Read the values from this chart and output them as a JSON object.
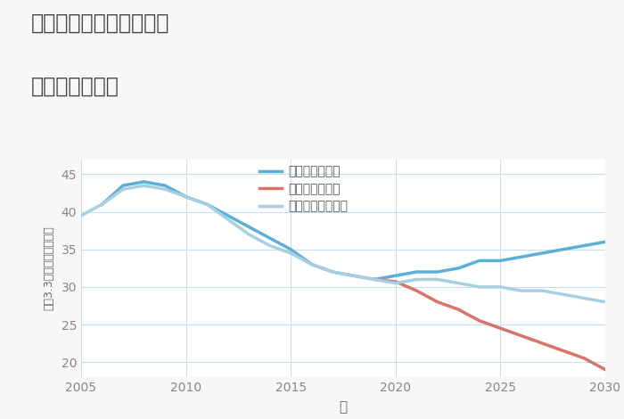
{
  "title_line1": "愛知県海部郡蟹江町城の",
  "title_line2": "土地の価格推移",
  "xlabel": "年",
  "ylabel": "坪（3.3㎡）単価（万円）",
  "background_color": "#f7f7f7",
  "plot_bg_color": "#ffffff",
  "grid_color": "#c8dff0",
  "good_scenario": {
    "label": "グッドシナリオ",
    "color": "#5bafd6",
    "x": [
      2006,
      2007,
      2008,
      2009,
      2010,
      2011,
      2012,
      2013,
      2014,
      2015,
      2016,
      2017,
      2018,
      2019,
      2020,
      2021,
      2022,
      2023,
      2024,
      2025,
      2026,
      2027,
      2028,
      2029,
      2030
    ],
    "y": [
      41.0,
      43.5,
      44.0,
      43.5,
      42.0,
      41.0,
      39.5,
      38.0,
      36.5,
      35.0,
      33.0,
      32.0,
      31.5,
      31.0,
      31.5,
      32.0,
      32.0,
      32.5,
      33.5,
      33.5,
      34.0,
      34.5,
      35.0,
      35.5,
      36.0
    ]
  },
  "bad_scenario": {
    "label": "バッドシナリオ",
    "color": "#d9736a",
    "x": [
      2019,
      2020,
      2021,
      2022,
      2023,
      2024,
      2025,
      2026,
      2027,
      2028,
      2029,
      2030
    ],
    "y": [
      31.0,
      30.7,
      29.5,
      28.0,
      27.0,
      25.5,
      24.5,
      23.5,
      22.5,
      21.5,
      20.5,
      19.0
    ]
  },
  "normal_scenario": {
    "label": "ノーマルシナリオ",
    "color": "#a8cfe0",
    "x": [
      2005,
      2006,
      2007,
      2008,
      2009,
      2010,
      2011,
      2012,
      2013,
      2014,
      2015,
      2016,
      2017,
      2018,
      2019,
      2020,
      2021,
      2022,
      2023,
      2024,
      2025,
      2026,
      2027,
      2028,
      2029,
      2030
    ],
    "y": [
      39.5,
      41.0,
      43.0,
      43.5,
      43.0,
      42.0,
      41.0,
      39.0,
      37.0,
      35.5,
      34.5,
      33.0,
      32.0,
      31.5,
      31.0,
      30.5,
      31.0,
      31.0,
      30.5,
      30.0,
      30.0,
      29.5,
      29.5,
      29.0,
      28.5,
      28.0
    ]
  },
  "xlim": [
    2005,
    2030
  ],
  "ylim": [
    18,
    47
  ],
  "yticks": [
    20,
    25,
    30,
    35,
    40,
    45
  ],
  "xticks": [
    2005,
    2010,
    2015,
    2020,
    2025,
    2030
  ]
}
